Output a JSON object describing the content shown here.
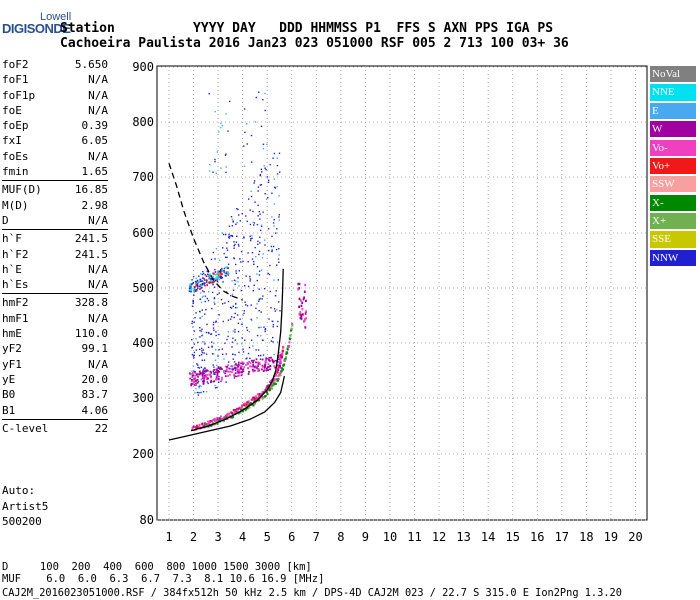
{
  "logo": {
    "line1": "Lowell",
    "line2": "DIGISONDE"
  },
  "header": {
    "line1": "Station          YYYY DAY   DDD HHMMSS P1  FFS S AXN PPS IGA PS",
    "line2": "Cachoeira Paulista 2016 Jan23 023 051000 RSF 005 2 713 100 03+ 36"
  },
  "params": [
    {
      "label": "foF2",
      "value": "5.650"
    },
    {
      "label": "foF1",
      "value": "N/A"
    },
    {
      "label": "foF1p",
      "value": "N/A"
    },
    {
      "label": "foE",
      "value": "N/A"
    },
    {
      "label": "foEp",
      "value": "0.39"
    },
    {
      "label": "fxI",
      "value": "6.05"
    },
    {
      "label": "foEs",
      "value": "N/A"
    },
    {
      "label": "fmin",
      "value": "1.65"
    },
    {
      "label": "MUF(D)",
      "value": "16.85",
      "sep": true
    },
    {
      "label": "M(D)",
      "value": "2.98"
    },
    {
      "label": "D",
      "value": "N/A"
    },
    {
      "label": "h`F",
      "value": "241.5",
      "sep": true
    },
    {
      "label": "h`F2",
      "value": "241.5"
    },
    {
      "label": "h`E",
      "value": "N/A"
    },
    {
      "label": "h`Es",
      "value": "N/A"
    },
    {
      "label": "hmF2",
      "value": "328.8",
      "sep": true
    },
    {
      "label": "hmF1",
      "value": "N/A"
    },
    {
      "label": "hmE",
      "value": "110.0"
    },
    {
      "label": "yF2",
      "value": "99.1"
    },
    {
      "label": "yF1",
      "value": "N/A"
    },
    {
      "label": "yE",
      "value": "20.0"
    },
    {
      "label": "B0",
      "value": "83.7"
    },
    {
      "label": "B1",
      "value": "4.06"
    },
    {
      "label": "C-level",
      "value": "22",
      "sep": true
    }
  ],
  "auto": {
    "line1": "Auto:",
    "line2": "Artist5",
    "line3": "500200"
  },
  "legend": [
    {
      "label": "NoVal",
      "color": "#808080"
    },
    {
      "label": "NNE",
      "color": "#00e0f0"
    },
    {
      "label": "E",
      "color": "#48a8f0"
    },
    {
      "label": "W",
      "color": "#a000a0"
    },
    {
      "label": "Vo-",
      "color": "#f040c0"
    },
    {
      "label": "Vo+",
      "color": "#f01818"
    },
    {
      "label": "SSW",
      "color": "#f8a0a0"
    },
    {
      "label": "X-",
      "color": "#008800"
    },
    {
      "label": "X+",
      "color": "#70b050"
    },
    {
      "label": "SSE",
      "color": "#c8c800"
    },
    {
      "label": "NNW",
      "color": "#2020d0"
    }
  ],
  "footer": {
    "d_row": "D     100  200  400  600  800 1000 1500 3000 [km]",
    "muf_row": "MUF    6.0  6.0  6.3  6.7  7.3  8.1 10.6 16.9 [MHz]",
    "file_row": "CAJ2M_2016023051000.RSF / 384fx512h 50 kHz 2.5 km / DPS-4D CAJ2M 023 / 22.7 S 315.0 E Ion2Png 1.3.20"
  },
  "chart_data": {
    "type": "scatter",
    "xlim": [
      1,
      20
    ],
    "ylim": [
      80,
      900
    ],
    "x_ticks": [
      "1",
      "2",
      "3",
      "4",
      "5",
      "6",
      "7",
      "8",
      "9",
      "10",
      "11",
      "12",
      "13",
      "14",
      "15",
      "16",
      "17",
      "18",
      "19",
      "20"
    ],
    "y_ticks": [
      "80",
      "200",
      "300",
      "400",
      "500",
      "600",
      "700",
      "800",
      "900"
    ],
    "y_tick_values": [
      80,
      200,
      300,
      400,
      500,
      600,
      700,
      800,
      900
    ],
    "grid": "dotted",
    "trace_o": [
      [
        1.9,
        246
      ],
      [
        2.2,
        250
      ],
      [
        2.5,
        255
      ],
      [
        2.8,
        260
      ],
      [
        3.1,
        266
      ],
      [
        3.4,
        272
      ],
      [
        3.7,
        279
      ],
      [
        4.0,
        287
      ],
      [
        4.3,
        296
      ],
      [
        4.6,
        306
      ],
      [
        4.9,
        318
      ],
      [
        5.1,
        328
      ],
      [
        5.3,
        342
      ],
      [
        5.45,
        358
      ],
      [
        5.55,
        376
      ],
      [
        5.62,
        395
      ]
    ],
    "trace_x": [
      [
        2.4,
        250
      ],
      [
        2.8,
        257
      ],
      [
        3.2,
        264
      ],
      [
        3.6,
        272
      ],
      [
        4.0,
        281
      ],
      [
        4.4,
        292
      ],
      [
        4.8,
        305
      ],
      [
        5.1,
        318
      ],
      [
        5.35,
        332
      ],
      [
        5.55,
        350
      ],
      [
        5.7,
        372
      ],
      [
        5.85,
        400
      ],
      [
        6.0,
        440
      ]
    ],
    "curve_o": [
      [
        1.9,
        241.5
      ],
      [
        2.6,
        250
      ],
      [
        3.3,
        262
      ],
      [
        4.0,
        278
      ],
      [
        4.6,
        296
      ],
      [
        5.0,
        315
      ],
      [
        5.2,
        330
      ],
      [
        5.35,
        350
      ],
      [
        5.45,
        380
      ],
      [
        5.55,
        420
      ],
      [
        5.6,
        460
      ],
      [
        5.63,
        500
      ],
      [
        5.65,
        535
      ]
    ],
    "curve_x": [
      [
        1.0,
        225
      ],
      [
        1.5,
        230
      ],
      [
        2.5,
        240
      ],
      [
        3.5,
        250
      ],
      [
        4.3,
        262
      ],
      [
        4.9,
        275
      ],
      [
        5.3,
        292
      ],
      [
        5.55,
        310
      ],
      [
        5.65,
        330
      ],
      [
        5.7,
        340
      ]
    ],
    "curve_dashed": [
      [
        1.0,
        725
      ],
      [
        1.3,
        685
      ],
      [
        1.6,
        640
      ],
      [
        2.0,
        590
      ],
      [
        2.4,
        548
      ],
      [
        2.8,
        515
      ],
      [
        3.2,
        495
      ],
      [
        3.6,
        485
      ],
      [
        4.0,
        478
      ]
    ]
  }
}
